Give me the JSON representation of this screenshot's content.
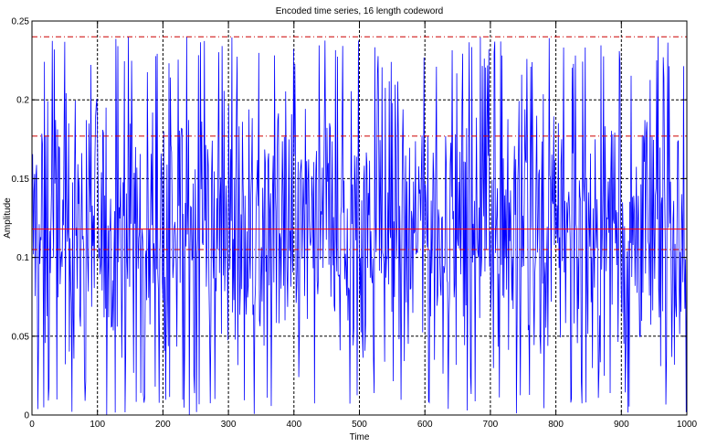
{
  "chart_data": {
    "type": "line",
    "title": "Encoded time series, 16 length codeword",
    "xlabel": "Time",
    "ylabel": "Amplitude",
    "xlim": [
      0,
      1000
    ],
    "ylim": [
      0,
      0.25
    ],
    "xticks": [
      0,
      100,
      200,
      300,
      400,
      500,
      600,
      700,
      800,
      900,
      1000
    ],
    "yticks": [
      0,
      0.05,
      0.1,
      0.15,
      0.2,
      0.25
    ],
    "xtick_labels": [
      "0",
      "100",
      "200",
      "300",
      "400",
      "500",
      "600",
      "700",
      "800",
      "900",
      "1000"
    ],
    "ytick_labels": [
      "0",
      "0.05",
      "0.1",
      "0.15",
      "0.2",
      "0.25"
    ],
    "grid": true,
    "legend": "none",
    "series": [
      {
        "color": "#0000ff",
        "style": "solid",
        "n_points": 1000,
        "x_range": [
          0,
          1000
        ],
        "min": 0.0,
        "max": 0.24,
        "mean": 0.118,
        "description_level": "approx"
      }
    ],
    "reference_lines": [
      {
        "y": 0.24,
        "color": "#cc0000",
        "style": "dash-dot"
      },
      {
        "y": 0.177,
        "color": "#cc0000",
        "style": "dash-dot"
      },
      {
        "y": 0.118,
        "color": "#ff0000",
        "style": "solid"
      },
      {
        "y": 0.105,
        "color": "#cc0000",
        "style": "dash-dot"
      }
    ],
    "colors": {
      "series": "#0000ff",
      "grid": "#000000",
      "reference": "#cc0000",
      "mean": "#ff0000"
    }
  }
}
